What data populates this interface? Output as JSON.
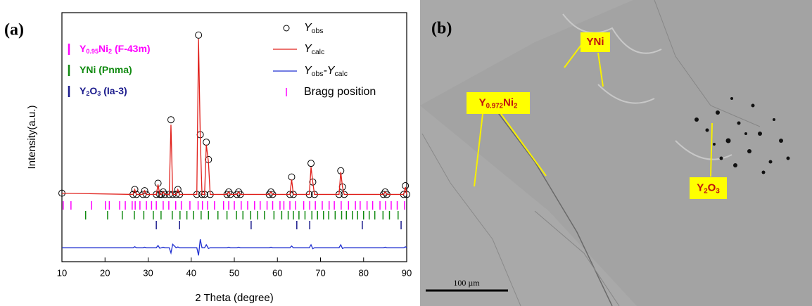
{
  "panel_labels": [
    "(a)",
    "(b)"
  ],
  "chart_data": {
    "type": "line",
    "xlabel": "2 Theta (degree)",
    "ylabel": "Intensity(a.u.)",
    "xlim": [
      10,
      90
    ],
    "xticks": [
      10,
      20,
      30,
      40,
      50,
      60,
      70,
      80,
      90
    ],
    "ylim": [
      0,
      100
    ],
    "x": [
      10,
      26.5,
      26.9,
      27.3,
      28.8,
      29.2,
      29.6,
      31.9,
      32.3,
      32.7,
      33.1,
      33.5,
      33.9,
      34.9,
      35.3,
      35.7,
      36.5,
      36.9,
      37.3,
      41.3,
      41.7,
      42.1,
      42.5,
      43.1,
      43.5,
      44.0,
      44.4,
      48.3,
      48.7,
      49.1,
      50.6,
      51,
      51.4,
      58.1,
      58.5,
      58.9,
      62.9,
      63.3,
      63.7,
      67.4,
      67.8,
      68.2,
      68.6,
      74.3,
      74.7,
      75.1,
      75.5,
      84.6,
      85,
      85.4,
      89.3,
      89.7,
      90
    ],
    "series": [
      {
        "name": [
          "Y",
          "obs"
        ],
        "color": "#000000",
        "marker": "circle",
        "values": [
          27.5,
          27,
          29,
          27,
          27,
          28.5,
          27,
          27,
          31.5,
          27,
          27,
          28,
          27,
          27,
          57,
          27,
          27,
          29,
          27,
          27,
          91,
          51,
          27,
          27,
          48,
          41,
          27,
          27,
          28,
          27,
          27,
          28,
          27,
          27,
          28,
          27,
          27,
          34,
          27,
          27,
          39.5,
          32,
          27,
          27,
          36.5,
          30,
          27,
          27,
          28,
          27,
          27,
          30.5,
          27
        ]
      },
      {
        "name": [
          "Y",
          "calc"
        ],
        "color": "#e0201b",
        "values": [
          27.5,
          27,
          29,
          27,
          27,
          28.5,
          27,
          27,
          31,
          27,
          27,
          28,
          27,
          27,
          55,
          27,
          27,
          29,
          27,
          27,
          89.5,
          50,
          27,
          27,
          47,
          40,
          27,
          27,
          28,
          27,
          27,
          28,
          27,
          27,
          28,
          27,
          27,
          33,
          27,
          27,
          38,
          32,
          27,
          27,
          36,
          30,
          27,
          27,
          28,
          27,
          27,
          30,
          27
        ]
      },
      {
        "name": [
          "Y",
          "obs",
          "-Y",
          "calc"
        ],
        "color": "#1f2fd0",
        "values": [
          5.6,
          5.6,
          6,
          5.6,
          5.6,
          5.8,
          5.6,
          5.6,
          6.5,
          5.4,
          5.6,
          5.8,
          5.6,
          5.6,
          3.5,
          7,
          5.6,
          5.9,
          5.6,
          5.6,
          2.5,
          9,
          5.6,
          5.6,
          6.8,
          5.3,
          5.6,
          5.6,
          5.8,
          5.6,
          5.6,
          5.8,
          5.6,
          5.6,
          5.8,
          5.6,
          5.6,
          6.3,
          5.6,
          5.6,
          6.8,
          5.2,
          5.6,
          5.6,
          6.8,
          5.3,
          5.6,
          5.6,
          5.8,
          5.6,
          5.6,
          6,
          5.6
        ]
      }
    ],
    "bragg": {
      "name": "Bragg position",
      "color": "#ff00ff",
      "phases": [
        {
          "name": [
            "Y",
            "0.95",
            "Ni",
            "2",
            " (F-43m)"
          ],
          "color": "#ff00ff",
          "positions": [
            10.3,
            12.1,
            16.9,
            20.1,
            21,
            23.4,
            24.7,
            26.3,
            27,
            28.1,
            29.6,
            30.8,
            31.9,
            33.5,
            34.8,
            36.4,
            37.7,
            39.7,
            41.6,
            42.6,
            43.8,
            45.4,
            47.5,
            48.7,
            50,
            51.6,
            53.1,
            54.7,
            56,
            57.6,
            58.9,
            60.6,
            61.5,
            62.9,
            64.2,
            66.1,
            67.5,
            68.8,
            70.4,
            72,
            73.2,
            74.8,
            76.5,
            78.1,
            79.2,
            80.8,
            82.1,
            83.8,
            85.1,
            86.4,
            87.8,
            89.5
          ]
        },
        {
          "name": [
            "YNi (Pnma)"
          ],
          "color": "#108a10",
          "positions": [
            15.5,
            20.6,
            24,
            26.8,
            29,
            31.2,
            33,
            35.6,
            37.4,
            39,
            40.5,
            42.3,
            44,
            46.2,
            48.3,
            50.5,
            52,
            53.8,
            55.4,
            57,
            59.2,
            61,
            62.5,
            63.7,
            65,
            66.4,
            68,
            69.3,
            70.7,
            71.9,
            73.4,
            74.9,
            76,
            77.4,
            78.6,
            80,
            81.3,
            82.6,
            84.5,
            86,
            88
          ]
        },
        {
          "name": [
            "Y",
            "2",
            "O",
            "3",
            " (Ia-3)"
          ],
          "color": "#1a1a8c",
          "positions": [
            31.9,
            37.3,
            53.9,
            64.5,
            67.5,
            79.7,
            88.7
          ]
        }
      ]
    }
  },
  "image": {
    "labels": [
      [
        "YNi"
      ],
      [
        "Y",
        "0.972",
        "Ni",
        "2"
      ],
      [
        "Y",
        "2",
        "O",
        "3"
      ]
    ],
    "scale_bar": "100 µm"
  }
}
